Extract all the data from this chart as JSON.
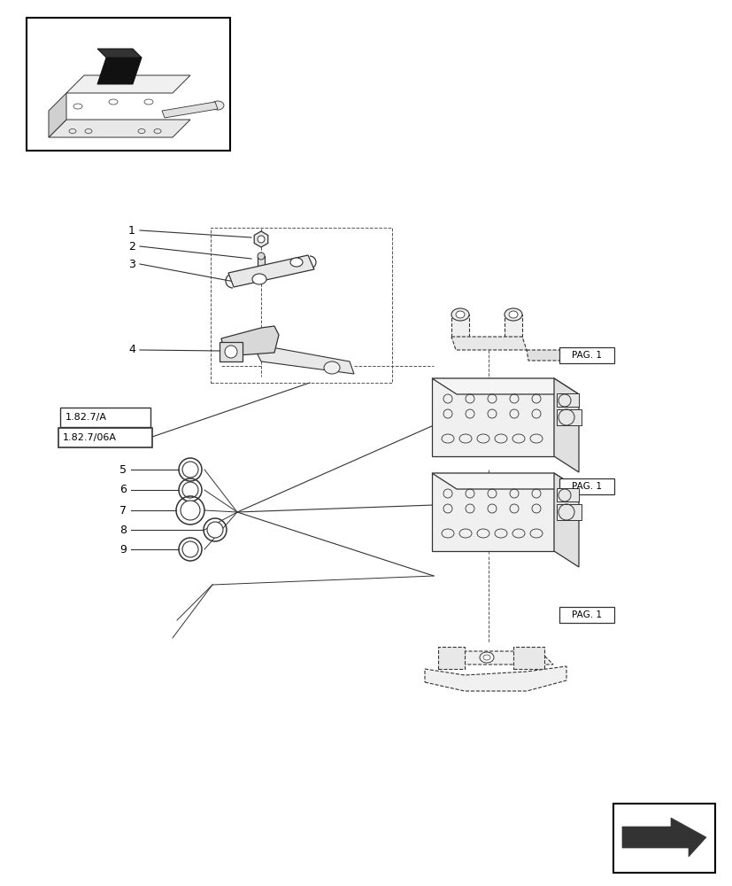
{
  "bg_color": "#ffffff",
  "line_color": "#333333",
  "dashed_color": "#555555",
  "border_color": "#000000",
  "title_box_labels": [
    "1.82.7/A",
    "1.82.7/06A"
  ],
  "pag_labels": [
    "PAG. 1",
    "PAG. 1",
    "PAG. 1"
  ],
  "part_numbers": [
    "1",
    "2",
    "3",
    "4",
    "5",
    "6",
    "7",
    "8",
    "9"
  ]
}
